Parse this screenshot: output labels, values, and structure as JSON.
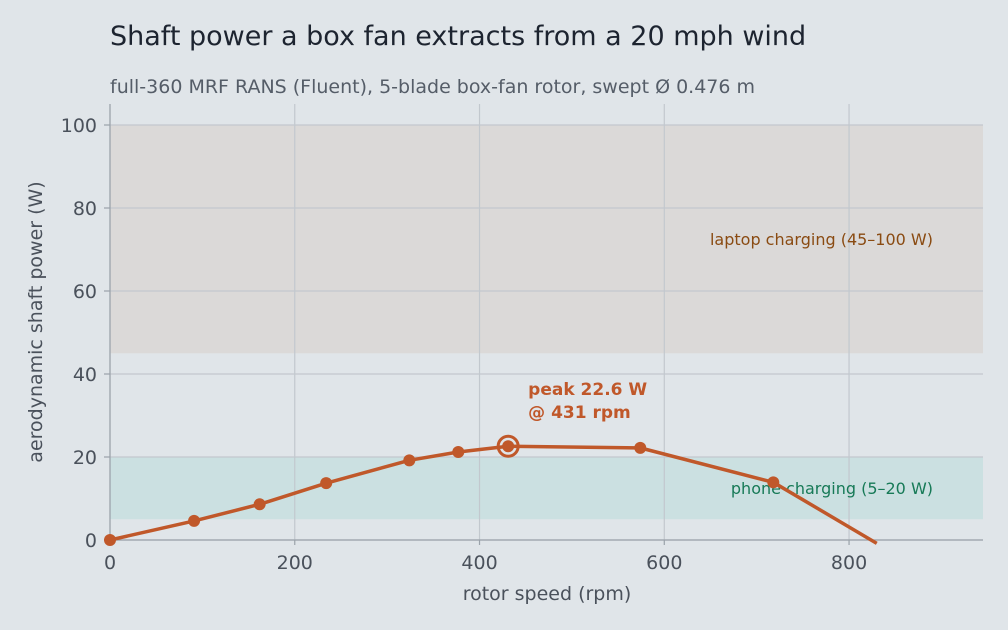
{
  "chart_data": {
    "type": "line",
    "title": "Shaft power a box fan extracts from a 20 mph wind",
    "subtitle": "full-360 MRF RANS (Fluent), 5-blade box-fan rotor, swept Ø 0.476 m",
    "xlabel": "rotor speed (rpm)",
    "ylabel": "aerodynamic shaft power (W)",
    "xlim": [
      0,
      945
    ],
    "ylim": [
      0,
      105
    ],
    "x_ticks": [
      0,
      200,
      400,
      600,
      800
    ],
    "y_ticks": [
      0,
      20,
      40,
      60,
      80,
      100
    ],
    "grid": true,
    "series": [
      {
        "color": "#c0582a",
        "x": [
          0,
          91,
          162,
          234,
          324,
          377,
          431,
          574,
          718,
          830
        ],
        "y": [
          0.0,
          4.6,
          8.6,
          13.7,
          19.2,
          21.2,
          22.6,
          22.2,
          13.9,
          -0.8
        ],
        "markers": [
          true,
          true,
          true,
          true,
          true,
          true,
          true,
          true,
          true,
          false
        ]
      }
    ],
    "bands": [
      {
        "label": "laptop charging (45–100 W)",
        "y0": 45,
        "y1": 100,
        "color": "#dbd9d8"
      },
      {
        "label": "phone charging (5–20 W)",
        "y0": 5,
        "y1": 20,
        "color": "#cbe0e1"
      }
    ],
    "annotations": [
      {
        "text_line1": "peak 22.6 W",
        "text_line2": "@ 431 rpm",
        "x": 431,
        "y": 22.6
      }
    ]
  }
}
